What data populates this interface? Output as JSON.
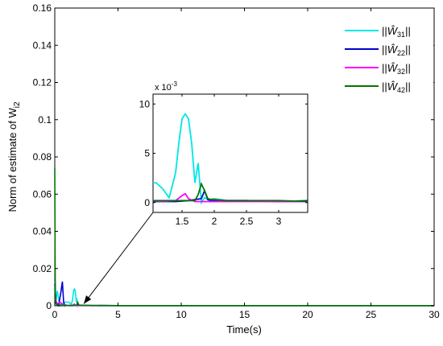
{
  "chart_data": [
    {
      "type": "line",
      "xlabel": "Time(s)",
      "ylabel": "Norm of estimate of W",
      "ylabel_sub": "i2",
      "xlim": [
        0,
        30
      ],
      "ylim": [
        0,
        0.16
      ],
      "xticks": [
        0,
        5,
        10,
        15,
        20,
        25,
        30
      ],
      "xtick_labels": [
        "0",
        "5",
        "10",
        "15",
        "20",
        "25",
        "30"
      ],
      "yticks": [
        0,
        0.02,
        0.04,
        0.06,
        0.08,
        0.1,
        0.12,
        0.14,
        0.16
      ],
      "ytick_labels": [
        "0",
        "0.02",
        "0.04",
        "0.06",
        "0.08",
        "0.1",
        "0.12",
        "0.14",
        "0.16"
      ],
      "grid": false,
      "legend_position": "top-right",
      "series": [
        {
          "name": "||Ŵ31||",
          "legend_base": "W",
          "legend_sub": "31",
          "color": "#00e6e6",
          "x": [
            0,
            0.03,
            0.08,
            0.2,
            0.35,
            0.5,
            0.65,
            0.8,
            0.95,
            1.1,
            1.2,
            1.3,
            1.4,
            1.45,
            1.5,
            1.55,
            1.6,
            1.65,
            1.7,
            1.75,
            1.8,
            1.85,
            1.9,
            2.0,
            2.2,
            2.5,
            3.0,
            3.5,
            5,
            10,
            15,
            20,
            25,
            30
          ],
          "y": [
            0.008,
            0.013,
            0.002,
            0.008,
            0.002,
            0.001,
            0.001,
            0.002,
            0.002,
            0.002,
            0.0014,
            0.0005,
            0.003,
            0.006,
            0.0085,
            0.009,
            0.0085,
            0.006,
            0.002,
            0.004,
            0.0,
            0.0005,
            0.0003,
            0.0004,
            0.0002,
            0.0002,
            0.0001,
            0.0001,
            0.0001,
            0.0001,
            0.0001,
            0.0001,
            0.0001,
            0.0001
          ]
        },
        {
          "name": "||Ŵ22||",
          "legend_base": "W",
          "legend_sub": "22",
          "color": "#0000cc",
          "x": [
            0,
            0.1,
            0.3,
            0.5,
            0.6,
            0.7,
            0.8,
            0.9,
            1.0,
            1.2,
            1.4,
            1.6,
            1.8,
            1.85,
            1.9,
            1.95,
            2.0,
            2.2,
            2.5,
            3.0,
            3.5,
            5,
            10,
            15,
            20,
            25,
            30
          ],
          "y": [
            0.012,
            0.001,
            0.0,
            0.008,
            0.013,
            0.002,
            0.0,
            0.0003,
            0.0001,
            0.0001,
            0.0001,
            0.0002,
            0.0004,
            0.0012,
            0.0003,
            0.0002,
            0.0002,
            0.0002,
            0.0002,
            0.0001,
            0.0002,
            0.0001,
            0.0001,
            0.0001,
            0.0001,
            0.0001,
            0.0001
          ]
        },
        {
          "name": "||Ŵ32||",
          "legend_base": "W",
          "legend_sub": "32",
          "color": "#ff00ff",
          "x": [
            0,
            0.2,
            0.4,
            0.6,
            0.8,
            1.0,
            1.2,
            1.4,
            1.5,
            1.55,
            1.6,
            1.7,
            1.8,
            2.0,
            2.5,
            3.0,
            3.5,
            5,
            10,
            15,
            20,
            25,
            30
          ],
          "y": [
            0.004,
            0.001,
            0.002,
            0.001,
            0.0005,
            0.0002,
            0.0001,
            0.0002,
            0.0007,
            0.0009,
            0.0004,
            0.0001,
            0.0001,
            0.0001,
            0.0001,
            0.0001,
            0.0001,
            0.0001,
            0.0001,
            0.0001,
            0.0001,
            0.0001,
            0.0001
          ]
        },
        {
          "name": "||Ŵ42||",
          "legend_base": "W",
          "legend_sub": "42",
          "color": "#007700",
          "x": [
            0,
            0.03,
            0.05,
            0.1,
            0.3,
            0.6,
            1.0,
            1.5,
            1.7,
            1.75,
            1.8,
            1.85,
            1.9,
            1.95,
            2.0,
            2.2,
            2.5,
            3.0,
            3.5,
            5,
            10,
            15,
            20,
            25,
            30
          ],
          "y": [
            0.074,
            0.02,
            0.005,
            0.001,
            0.0005,
            0.0003,
            0.0002,
            0.0002,
            0.0002,
            0.0008,
            0.0019,
            0.0012,
            0.0004,
            0.0003,
            0.0003,
            0.0002,
            0.0002,
            0.0002,
            0.0001,
            0.0001,
            0.0001,
            0.0001,
            0.0001,
            0.0001,
            0.0001
          ]
        }
      ]
    },
    {
      "type": "line",
      "xlim": [
        1.05,
        3.45
      ],
      "ylim": [
        -0.001,
        0.011
      ],
      "xticks": [
        1.5,
        2,
        2.5,
        3
      ],
      "xtick_labels": [
        "1.5",
        "2",
        "2.5",
        "3"
      ],
      "yticks": [
        0,
        0.005,
        0.01
      ],
      "ytick_labels": [
        "0",
        "5",
        "10"
      ],
      "y_multiplier_label": "x 10",
      "y_multiplier_exponent": "-3",
      "zoom_target_x": 2.3,
      "zoom_target_y": 0.0002
    }
  ]
}
